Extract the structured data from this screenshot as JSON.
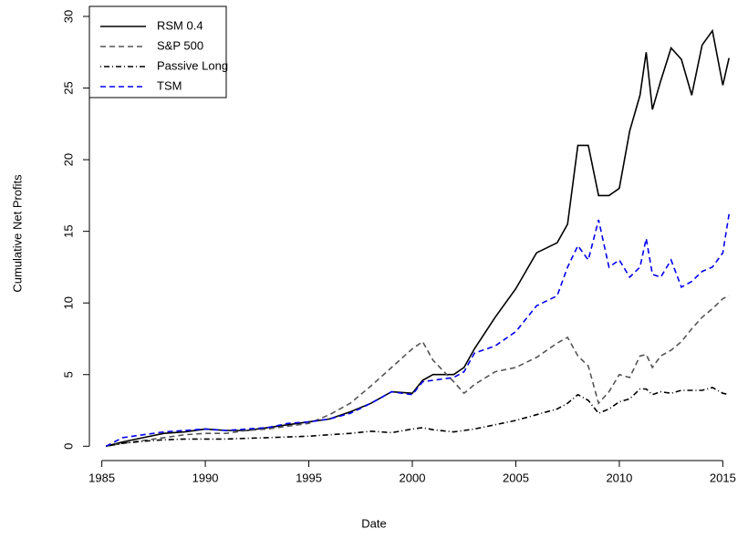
{
  "chart_data": {
    "type": "line",
    "x_label": "Date",
    "y_label": "Cumulative Net Profits",
    "x": [
      1985.2,
      1986,
      1987,
      1988,
      1989,
      1990,
      1991,
      1992,
      1993,
      1994,
      1995,
      1996,
      1997,
      1998,
      1999,
      2000,
      2000.5,
      2001,
      2002,
      2002.5,
      2003,
      2004,
      2005,
      2006,
      2007,
      2007.5,
      2008,
      2008.5,
      2009,
      2009.5,
      2010,
      2010.5,
      2011,
      2011.3,
      2011.6,
      2012,
      2012.5,
      2013,
      2013.5,
      2014,
      2014.5,
      2015,
      2015.3
    ],
    "series": [
      {
        "name": "RSM 0.4",
        "color": "#000000",
        "linestyle": "solid",
        "values": [
          0,
          0.3,
          0.6,
          0.9,
          1.0,
          1.2,
          1.1,
          1.1,
          1.3,
          1.5,
          1.7,
          1.9,
          2.4,
          3.0,
          3.8,
          3.7,
          4.6,
          5.0,
          5.0,
          5.5,
          6.8,
          9.0,
          11.0,
          13.5,
          14.2,
          15.5,
          21,
          21.0,
          17.5,
          17.5,
          18,
          22,
          24.5,
          27.5,
          23.5,
          25.5,
          27.8,
          27,
          24.5,
          28,
          29,
          25.2,
          27.1
        ]
      },
      {
        "name": "S&P 500",
        "color": "#555555",
        "linestyle": "dashed",
        "values": [
          0,
          0.2,
          0.4,
          0.6,
          0.8,
          0.9,
          0.9,
          1.1,
          1.2,
          1.4,
          1.6,
          2.2,
          3.0,
          4.2,
          5.5,
          6.8,
          7.3,
          6.0,
          4.5,
          3.7,
          4.3,
          5.2,
          5.5,
          6.2,
          7.2,
          7.6,
          6.3,
          5.6,
          3.0,
          3.8,
          5.0,
          4.8,
          6.3,
          6.4,
          5.5,
          6.3,
          6.7,
          7.3,
          8.2,
          9.0,
          9.6,
          10.3,
          10.5
        ]
      },
      {
        "name": "Passive Long",
        "color": "#000000",
        "linestyle": "dotdash",
        "values": [
          0,
          0.2,
          0.35,
          0.45,
          0.5,
          0.5,
          0.5,
          0.55,
          0.6,
          0.65,
          0.7,
          0.8,
          0.9,
          1.05,
          0.95,
          1.2,
          1.3,
          1.15,
          1.0,
          1.1,
          1.2,
          1.5,
          1.8,
          2.2,
          2.6,
          3.0,
          3.6,
          3.2,
          2.3,
          2.6,
          3.1,
          3.3,
          4.0,
          4.0,
          3.6,
          3.8,
          3.7,
          3.9,
          3.9,
          3.9,
          4.1,
          3.7,
          3.6
        ]
      },
      {
        "name": "TSM",
        "color": "#0000ee",
        "linestyle": "dashed",
        "values": [
          0,
          0.6,
          0.8,
          1.0,
          1.1,
          1.2,
          1.1,
          1.2,
          1.3,
          1.6,
          1.7,
          1.9,
          2.3,
          3.0,
          3.8,
          3.6,
          4.5,
          4.6,
          4.8,
          5.2,
          6.5,
          7.0,
          8.0,
          9.8,
          10.5,
          12.5,
          14.0,
          13.0,
          15.8,
          12.5,
          13.0,
          11.8,
          12.5,
          14.5,
          12.0,
          11.8,
          13.0,
          11.1,
          11.5,
          12.2,
          12.5,
          13.5,
          16.2
        ]
      }
    ],
    "xlim": [
      1984.4,
      2015.6
    ],
    "xticks": [
      1985,
      1990,
      1995,
      2000,
      2005,
      2010,
      2015
    ],
    "ylim": [
      -1,
      30.7
    ],
    "yticks": [
      0,
      5,
      10,
      15,
      20,
      25,
      30
    ],
    "legend": "top-left"
  }
}
